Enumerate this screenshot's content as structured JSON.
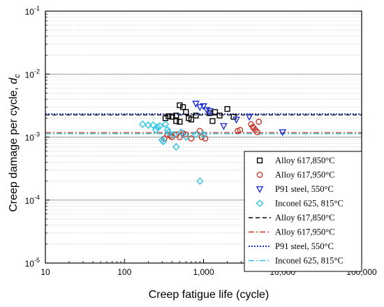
{
  "chart_data": {
    "type": "scatter",
    "xscale": "log",
    "yscale": "log",
    "xlim": [
      10,
      100000
    ],
    "ylim": [
      1e-05,
      0.1
    ],
    "xlabel": "Creep fatigue life (cycle)",
    "ylabel_main": "Creep damage per cycle, ",
    "ylabel_var": "d",
    "ylabel_sub": "c",
    "x_ticks": [
      {
        "value": 10,
        "label": "10"
      },
      {
        "value": 100,
        "label": "100"
      },
      {
        "value": 1000,
        "label": "1,000"
      },
      {
        "value": 10000,
        "label": "10,000"
      },
      {
        "value": 100000,
        "label": "100,000"
      }
    ],
    "y_ticks": [
      {
        "value": 1e-05,
        "base": "10",
        "exp": "-5"
      },
      {
        "value": 0.0001,
        "base": "10",
        "exp": "-4"
      },
      {
        "value": 0.001,
        "base": "10",
        "exp": "-3"
      },
      {
        "value": 0.01,
        "base": "10",
        "exp": "-2"
      },
      {
        "value": 0.1,
        "base": "10",
        "exp": "-1"
      }
    ],
    "grid": "major and minor horizontal",
    "legend_position": "bottom-right",
    "series": [
      {
        "name": "Alloy 617,850°C",
        "marker": "square",
        "color": "#000000",
        "points": [
          [
            330,
            0.002
          ],
          [
            360,
            0.00215
          ],
          [
            400,
            0.0021
          ],
          [
            450,
            0.0022
          ],
          [
            500,
            0.0032
          ],
          [
            550,
            0.003
          ],
          [
            600,
            0.0025
          ],
          [
            650,
            0.002
          ],
          [
            700,
            0.0019
          ],
          [
            450,
            0.0018
          ],
          [
            500,
            0.00175
          ],
          [
            1200,
            0.0024
          ],
          [
            1400,
            0.0025
          ],
          [
            1600,
            0.0022
          ],
          [
            2000,
            0.0028
          ],
          [
            2400,
            0.0021
          ],
          [
            1300,
            0.0018
          ],
          [
            800,
            0.0022
          ]
        ]
      },
      {
        "name": "Alloy 617,950°C",
        "marker": "circle",
        "color": "#c0392b",
        "points": [
          [
            320,
            0.00095
          ],
          [
            350,
            0.0011
          ],
          [
            380,
            0.00105
          ],
          [
            400,
            0.001
          ],
          [
            450,
            0.0011
          ],
          [
            500,
            0.001
          ],
          [
            550,
            0.00115
          ],
          [
            600,
            0.0011
          ],
          [
            700,
            0.00095
          ],
          [
            900,
            0.00125
          ],
          [
            950,
            0.001
          ],
          [
            1050,
            0.00095
          ],
          [
            2700,
            0.00125
          ],
          [
            2900,
            0.0013
          ],
          [
            4000,
            0.0016
          ],
          [
            4200,
            0.00145
          ],
          [
            4500,
            0.0013
          ],
          [
            4800,
            0.0012
          ],
          [
            5000,
            0.00175
          ],
          [
            4300,
            0.0014
          ]
        ]
      },
      {
        "name": "P91 steel, 550°C",
        "marker": "triangle-down",
        "color": "#1f2fd6",
        "points": [
          [
            800,
            0.0034
          ],
          [
            900,
            0.003
          ],
          [
            1000,
            0.0031
          ],
          [
            1100,
            0.0027
          ],
          [
            1200,
            0.0026
          ],
          [
            1800,
            0.0015
          ],
          [
            2600,
            0.0019
          ],
          [
            3800,
            0.0021
          ],
          [
            10000,
            0.0012
          ]
        ]
      },
      {
        "name": "Inconel 625, 815°C",
        "marker": "diamond",
        "color": "#2ec4e6",
        "points": [
          [
            170,
            0.0016
          ],
          [
            200,
            0.00155
          ],
          [
            230,
            0.00155
          ],
          [
            250,
            0.0013
          ],
          [
            260,
            0.00145
          ],
          [
            280,
            0.0015
          ],
          [
            300,
            0.0009
          ],
          [
            310,
            0.00085
          ],
          [
            330,
            0.0016
          ],
          [
            350,
            0.0013
          ],
          [
            360,
            0.0012
          ],
          [
            420,
            0.0011
          ],
          [
            450,
            0.0007
          ],
          [
            520,
            0.0012
          ],
          [
            600,
            0.001
          ],
          [
            800,
            0.0011
          ],
          [
            900,
            0.0002
          ],
          [
            1000,
            0.0011
          ]
        ]
      }
    ],
    "reference_lines": [
      {
        "name": "Alloy 617,850°C",
        "style": "dash",
        "color": "#000000",
        "y": 0.00225
      },
      {
        "name": "Alloy 617,950°C",
        "style": "dashdot",
        "color": "#c0392b",
        "y": 0.00118
      },
      {
        "name": "P91 steel, 550°C",
        "style": "dot",
        "color": "#1f2fd6",
        "y": 0.00232
      },
      {
        "name": "Inconel 625, 815°C",
        "style": "dashdot",
        "color": "#2ec4e6",
        "y": 0.00113
      }
    ]
  }
}
